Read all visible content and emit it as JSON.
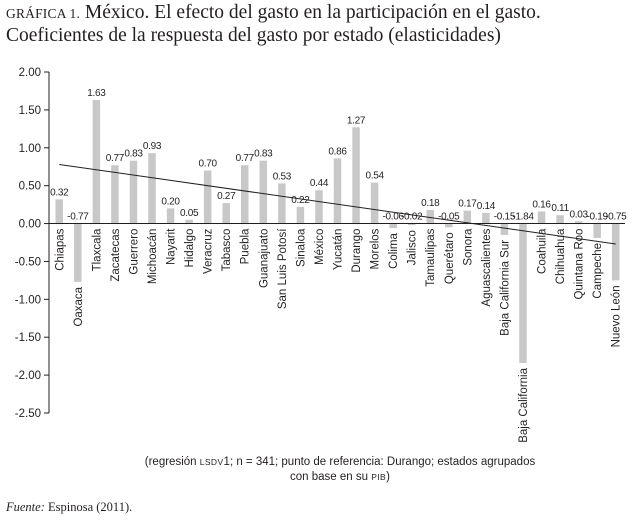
{
  "title": {
    "label": "GRÁFICA 1.",
    "line1": "México. El efecto del gasto en la participación en el gasto.",
    "line2": "Coeficientes de la respuesta del gasto por estado (elasticidades)"
  },
  "chart_data": {
    "type": "bar",
    "categories": [
      "Chiapas",
      "Oaxaca",
      "Tlaxcala",
      "Zacatecas",
      "Guerrero",
      "Michoacán",
      "Nayarit",
      "Hidalgo",
      "Veracruz",
      "Tabasco",
      "Puebla",
      "Guanajuato",
      "San Luis Potosí",
      "Sinaloa",
      "México",
      "Yucatán",
      "Durango",
      "Morelos",
      "Colima",
      "Jalisco",
      "Tamaulipas",
      "Querétaro",
      "Sonora",
      "Aguascalientes",
      "Baja California Sur",
      "Baja California",
      "Coahuila",
      "Chihuahua",
      "Quintana Roo",
      "Campeche",
      "Nuevo León"
    ],
    "values": [
      0.32,
      -0.77,
      1.63,
      0.77,
      0.83,
      0.93,
      0.2,
      0.05,
      0.7,
      0.27,
      0.77,
      0.83,
      0.53,
      0.22,
      0.44,
      0.86,
      1.27,
      0.54,
      -0.06,
      -0.02,
      0.18,
      -0.05,
      0.17,
      0.14,
      -0.15,
      -1.84,
      0.16,
      0.11,
      0.03,
      -0.19,
      -0.75
    ],
    "data_labels": [
      "0.32",
      "-0.77",
      "1.63",
      "0.77",
      "0.83",
      "0.93",
      "0.20",
      "0.05",
      "0.70",
      "0.27",
      "0.77",
      "0.83",
      "0.53",
      "0.22",
      "0.44",
      "0.86",
      "1.27",
      "0.54",
      "-0.06",
      "-0.02",
      "0.18",
      "-0.05",
      "0.17",
      "0.14",
      "-0.15",
      "-1.84",
      "0.16",
      "0.11",
      "0.03",
      "-0.19",
      "-0.75"
    ],
    "ylim": [
      -2.5,
      2.0
    ],
    "yticks": [
      "2.00",
      "1.50",
      "1.00",
      "0.50",
      "0.00",
      "-0.50",
      "-1.00",
      "-1.50",
      "-2.00",
      "-2.50"
    ],
    "ytick_values": [
      2.0,
      1.5,
      1.0,
      0.5,
      0.0,
      -0.5,
      -1.0,
      -1.5,
      -2.0,
      -2.5
    ],
    "trendline": {
      "start": 0.78,
      "end": -0.27
    },
    "xlabel": "",
    "ylabel": "",
    "grid": false,
    "bar_color": "#c8c8c8",
    "axis_color": "#231f20"
  },
  "note": {
    "line1_a": "(regresión ",
    "line1_sc": "LSDV",
    "line1_b": "1; n = 341; punto de referencia: Durango; estados agrupados",
    "line2_a": "con base en su ",
    "line2_sc": "PIB",
    "line2_b": ")"
  },
  "source": {
    "label": "Fuente:",
    "text": " Espinosa (2011)."
  }
}
